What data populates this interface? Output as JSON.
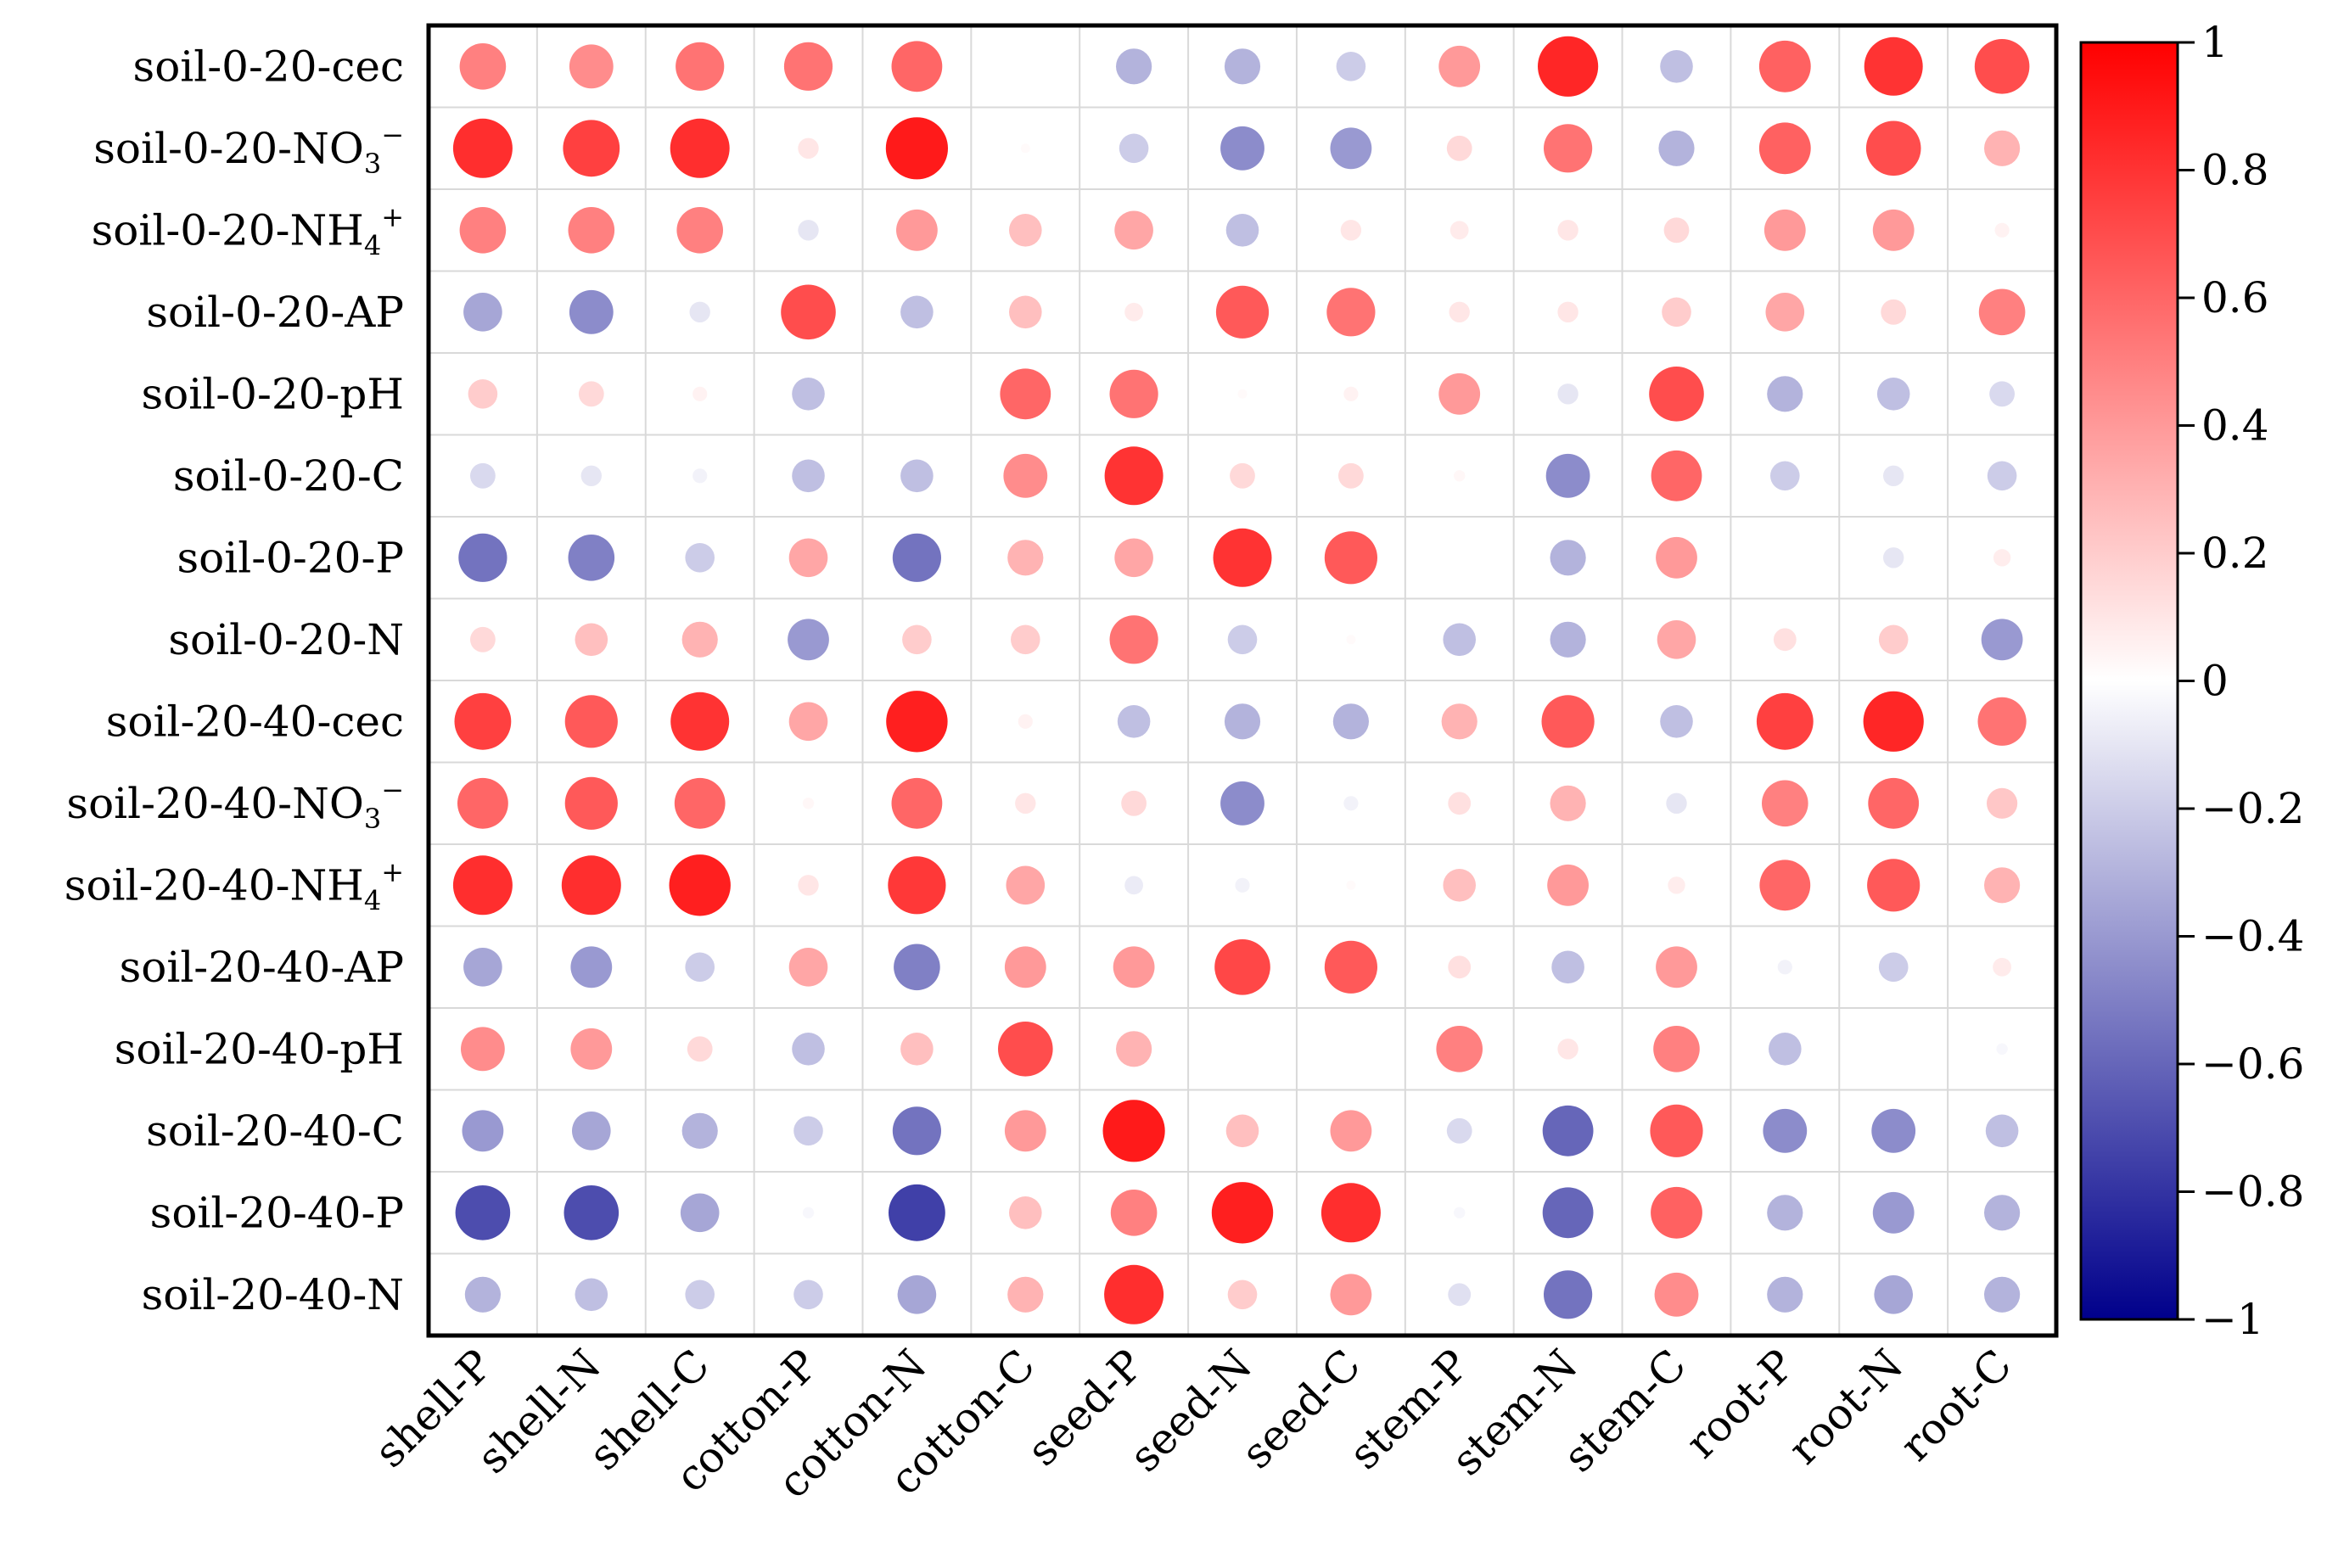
{
  "chart_data": {
    "type": "heatmap",
    "subtype": "bubble-correlation",
    "rows": [
      {
        "prefix": "soil-0-20-",
        "main": "cec",
        "sub": "",
        "sup": ""
      },
      {
        "prefix": "soil-0-20-",
        "main": "NO",
        "sub": "3",
        "sup": "−"
      },
      {
        "prefix": "soil-0-20-",
        "main": "NH",
        "sub": "4",
        "sup": "+"
      },
      {
        "prefix": "soil-0-20-",
        "main": "AP",
        "sub": "",
        "sup": ""
      },
      {
        "prefix": "soil-0-20-",
        "main": "pH",
        "sub": "",
        "sup": ""
      },
      {
        "prefix": "soil-0-20-",
        "main": "C",
        "sub": "",
        "sup": ""
      },
      {
        "prefix": "soil-0-20-",
        "main": "P",
        "sub": "",
        "sup": ""
      },
      {
        "prefix": "soil-0-20-",
        "main": "N",
        "sub": "",
        "sup": ""
      },
      {
        "prefix": "soil-20-40-",
        "main": "cec",
        "sub": "",
        "sup": ""
      },
      {
        "prefix": "soil-20-40-",
        "main": "NO",
        "sub": "3",
        "sup": "−"
      },
      {
        "prefix": "soil-20-40-",
        "main": "NH",
        "sub": "4",
        "sup": "+"
      },
      {
        "prefix": "soil-20-40-",
        "main": "AP",
        "sub": "",
        "sup": ""
      },
      {
        "prefix": "soil-20-40-",
        "main": "pH",
        "sub": "",
        "sup": ""
      },
      {
        "prefix": "soil-20-40-",
        "main": "C",
        "sub": "",
        "sup": ""
      },
      {
        "prefix": "soil-20-40-",
        "main": "P",
        "sub": "",
        "sup": ""
      },
      {
        "prefix": "soil-20-40-",
        "main": "N",
        "sub": "",
        "sup": ""
      }
    ],
    "columns": [
      "shell-P",
      "shell-N",
      "shell-C",
      "cotton-P",
      "cotton-N",
      "cotton-C",
      "seed-P",
      "seed-N",
      "seed-C",
      "stem-P",
      "stem-N",
      "stem-C",
      "root-P",
      "root-N",
      "root-C"
    ],
    "values": [
      [
        0.5,
        0.45,
        0.55,
        0.55,
        0.6,
        0.0,
        -0.3,
        -0.3,
        -0.2,
        0.4,
        0.85,
        -0.25,
        0.62,
        0.8,
        0.7
      ],
      [
        0.82,
        0.75,
        0.82,
        0.1,
        0.9,
        0.02,
        -0.2,
        -0.45,
        -0.4,
        0.15,
        0.55,
        -0.3,
        0.62,
        0.7,
        0.3
      ],
      [
        0.5,
        0.5,
        0.5,
        -0.1,
        0.4,
        0.25,
        0.35,
        -0.25,
        0.1,
        0.08,
        0.1,
        0.15,
        0.4,
        0.4,
        0.05
      ],
      [
        -0.35,
        -0.45,
        -0.1,
        0.7,
        -0.25,
        0.25,
        0.08,
        0.65,
        0.55,
        0.1,
        0.1,
        0.2,
        0.35,
        0.15,
        0.5
      ],
      [
        0.2,
        0.15,
        0.05,
        -0.25,
        0.0,
        0.6,
        0.55,
        0.02,
        0.05,
        0.4,
        -0.1,
        0.7,
        -0.3,
        -0.25,
        -0.15
      ],
      [
        -0.15,
        -0.1,
        -0.05,
        -0.25,
        -0.25,
        0.45,
        0.8,
        0.15,
        0.15,
        0.03,
        -0.45,
        0.6,
        -0.2,
        -0.1,
        -0.2
      ],
      [
        -0.55,
        -0.5,
        -0.2,
        0.35,
        -0.55,
        0.3,
        0.35,
        0.8,
        0.65,
        0.0,
        -0.3,
        0.4,
        0.0,
        -0.1,
        0.07
      ],
      [
        0.15,
        0.25,
        0.3,
        -0.4,
        0.2,
        0.2,
        0.55,
        -0.2,
        0.02,
        -0.25,
        -0.3,
        0.35,
        0.12,
        0.2,
        -0.4
      ],
      [
        0.75,
        0.65,
        0.8,
        0.35,
        0.88,
        0.05,
        -0.25,
        -0.3,
        -0.3,
        0.3,
        0.65,
        -0.25,
        0.75,
        0.85,
        0.55
      ],
      [
        0.6,
        0.65,
        0.6,
        0.03,
        0.6,
        0.1,
        0.15,
        -0.45,
        -0.05,
        0.12,
        0.3,
        -0.1,
        0.5,
        0.6,
        0.22
      ],
      [
        0.82,
        0.82,
        0.88,
        0.1,
        0.78,
        0.35,
        -0.08,
        -0.05,
        0.02,
        0.25,
        0.4,
        0.07,
        0.6,
        0.65,
        0.3
      ],
      [
        -0.35,
        -0.4,
        -0.2,
        0.35,
        -0.5,
        0.4,
        0.4,
        0.72,
        0.65,
        0.12,
        -0.25,
        0.4,
        -0.05,
        -0.2,
        0.08
      ],
      [
        0.45,
        0.4,
        0.15,
        -0.25,
        0.25,
        0.7,
        0.3,
        0.0,
        0.0,
        0.5,
        0.1,
        0.5,
        -0.25,
        0.0,
        -0.03
      ],
      [
        -0.4,
        -0.35,
        -0.3,
        -0.2,
        -0.55,
        0.4,
        0.9,
        0.25,
        0.4,
        -0.15,
        -0.6,
        0.65,
        -0.45,
        -0.45,
        -0.25
      ],
      [
        -0.7,
        -0.7,
        -0.35,
        -0.03,
        -0.75,
        0.25,
        0.5,
        0.88,
        0.82,
        -0.03,
        -0.6,
        0.62,
        -0.3,
        -0.4,
        -0.3
      ],
      [
        -0.3,
        -0.25,
        -0.2,
        -0.2,
        -0.35,
        0.3,
        0.82,
        0.2,
        0.4,
        -0.12,
        -0.55,
        0.45,
        -0.3,
        -0.35,
        -0.3
      ]
    ],
    "colorbar": {
      "range": [
        -1,
        1
      ],
      "ticks": [
        1,
        0.8,
        0.6,
        0.4,
        0.2,
        0,
        -0.2,
        -0.4,
        -0.6,
        -0.8,
        -1
      ],
      "tick_labels": [
        "1",
        "0.8",
        "0.6",
        "0.4",
        "0.2",
        "0",
        "−0.2",
        "−0.4",
        "−0.6",
        "−0.8",
        "−1"
      ],
      "colors": {
        "negative": "#00008b",
        "zero": "#ffffff",
        "positive": "#ff0000"
      }
    },
    "grid": true,
    "title": "",
    "xlabel": "",
    "ylabel": ""
  }
}
